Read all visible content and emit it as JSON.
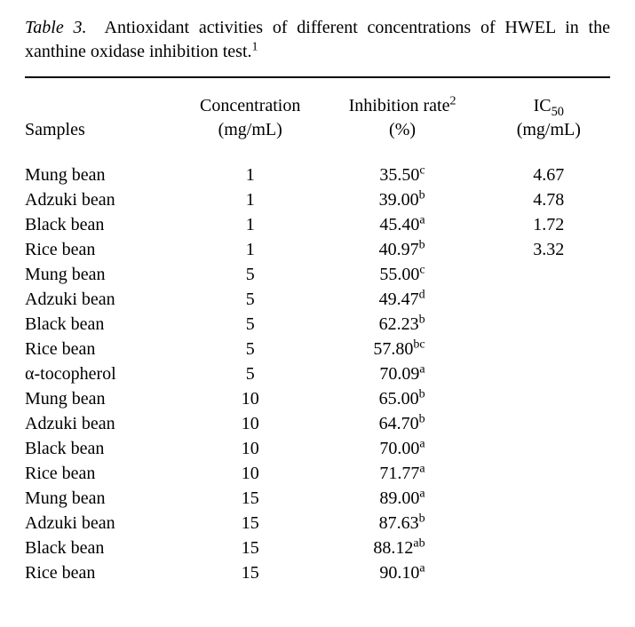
{
  "caption": {
    "label": "Table 3.",
    "text_before_sup": "Antioxidant activities of different concentrations of HWEL in the xanthine oxidase inhibition test.",
    "sup": "1"
  },
  "headers": {
    "samples": "Samples",
    "concentration_line1": "Concentration",
    "concentration_line2": "(mg/mL)",
    "inhibition_line1a": "Inhibition rate",
    "inhibition_line1_sup": "2",
    "inhibition_line2": "(%)",
    "ic50_line1a": "IC",
    "ic50_line1_sub": "50",
    "ic50_line2": "(mg/mL)"
  },
  "rows": [
    {
      "sample": "Mung bean",
      "conc": "1",
      "inhib": "35.50",
      "sup": "c",
      "ic50": "4.67"
    },
    {
      "sample": "Adzuki bean",
      "conc": "1",
      "inhib": "39.00",
      "sup": "b",
      "ic50": "4.78"
    },
    {
      "sample": "Black bean",
      "conc": "1",
      "inhib": "45.40",
      "sup": "a",
      "ic50": "1.72"
    },
    {
      "sample": "Rice bean",
      "conc": "1",
      "inhib": "40.97",
      "sup": "b",
      "ic50": "3.32"
    },
    {
      "sample": "Mung bean",
      "conc": "5",
      "inhib": "55.00",
      "sup": "c",
      "ic50": ""
    },
    {
      "sample": "Adzuki bean",
      "conc": "5",
      "inhib": "49.47",
      "sup": "d",
      "ic50": ""
    },
    {
      "sample": "Black bean",
      "conc": "5",
      "inhib": "62.23",
      "sup": "b",
      "ic50": ""
    },
    {
      "sample": "Rice bean",
      "conc": "5",
      "inhib": "57.80",
      "sup": "bc",
      "ic50": ""
    },
    {
      "sample": "α-tocopherol",
      "conc": "5",
      "inhib": "70.09",
      "sup": "a",
      "ic50": ""
    },
    {
      "sample": "Mung bean",
      "conc": "10",
      "inhib": "65.00",
      "sup": "b",
      "ic50": ""
    },
    {
      "sample": "Adzuki bean",
      "conc": "10",
      "inhib": "64.70",
      "sup": "b",
      "ic50": ""
    },
    {
      "sample": "Black bean",
      "conc": "10",
      "inhib": "70.00",
      "sup": "a",
      "ic50": ""
    },
    {
      "sample": "Rice bean",
      "conc": "10",
      "inhib": "71.77",
      "sup": "a",
      "ic50": ""
    },
    {
      "sample": "Mung bean",
      "conc": "15",
      "inhib": "89.00",
      "sup": "a",
      "ic50": ""
    },
    {
      "sample": "Adzuki bean",
      "conc": "15",
      "inhib": "87.63",
      "sup": "b",
      "ic50": ""
    },
    {
      "sample": "Black bean",
      "conc": "15",
      "inhib": "88.12",
      "sup": "ab",
      "ic50": ""
    },
    {
      "sample": "Rice bean",
      "conc": "15",
      "inhib": "90.10",
      "sup": "a",
      "ic50": ""
    }
  ]
}
